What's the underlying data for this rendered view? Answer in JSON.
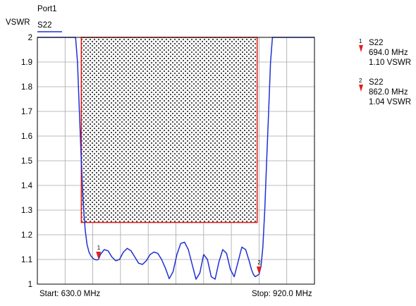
{
  "chart_data": {
    "type": "line",
    "port_label": "Port1",
    "ylabel": "VSWR",
    "ylim": [
      1,
      2
    ],
    "yticks": [
      "1",
      "1.1",
      "1.2",
      "1.3",
      "1.4",
      "1.5",
      "1.6",
      "1.7",
      "1.8",
      "1.9",
      "2"
    ],
    "x_start_label": "Start: 630.0 MHz",
    "x_stop_label": "Stop: 920.0 MHz",
    "xlim": [
      630,
      920
    ],
    "grid": true,
    "series": [
      {
        "name": "S22",
        "color": "#1f2fd6",
        "x": [
          630,
          670,
          672,
          674,
          676,
          678,
          680,
          682,
          684,
          686,
          688,
          690,
          692,
          694,
          696,
          700,
          704,
          708,
          712,
          716,
          720,
          724,
          728,
          732,
          736,
          740,
          744,
          748,
          752,
          756,
          760,
          764,
          768,
          772,
          776,
          780,
          784,
          788,
          792,
          796,
          800,
          804,
          808,
          812,
          816,
          820,
          824,
          828,
          832,
          836,
          840,
          844,
          848,
          852,
          854,
          856,
          858,
          860,
          862,
          864,
          866,
          868,
          870,
          872,
          874,
          876,
          920
        ],
        "y": [
          2.0,
          2.0,
          1.9,
          1.7,
          1.5,
          1.33,
          1.22,
          1.16,
          1.13,
          1.115,
          1.105,
          1.1,
          1.098,
          1.1,
          1.12,
          1.14,
          1.135,
          1.11,
          1.095,
          1.1,
          1.13,
          1.145,
          1.135,
          1.11,
          1.085,
          1.08,
          1.095,
          1.12,
          1.13,
          1.125,
          1.1,
          1.065,
          1.022,
          1.05,
          1.12,
          1.165,
          1.17,
          1.14,
          1.08,
          1.02,
          1.045,
          1.12,
          1.1,
          1.03,
          1.02,
          1.09,
          1.14,
          1.125,
          1.06,
          1.03,
          1.09,
          1.15,
          1.14,
          1.09,
          1.06,
          1.04,
          1.03,
          1.035,
          1.04,
          1.07,
          1.15,
          1.3,
          1.5,
          1.7,
          1.9,
          2.0,
          2.0
        ]
      }
    ],
    "mask": {
      "x": [
        676,
        860
      ],
      "y": [
        1.25,
        2.0
      ],
      "border_color": "#e0201b"
    },
    "markers": [
      {
        "number": "1",
        "trace": "S22",
        "freq": "694.0 MHz",
        "value": "1.10 VSWR",
        "x": 694,
        "y": 1.1
      },
      {
        "number": "2",
        "trace": "S22",
        "freq": "862.0 MHz",
        "value": "1.04 VSWR",
        "x": 862,
        "y": 1.04
      }
    ]
  },
  "colors": {
    "trace": "#1f2fd6",
    "marker": "#e0201b",
    "grid": "#a6a6a6"
  }
}
